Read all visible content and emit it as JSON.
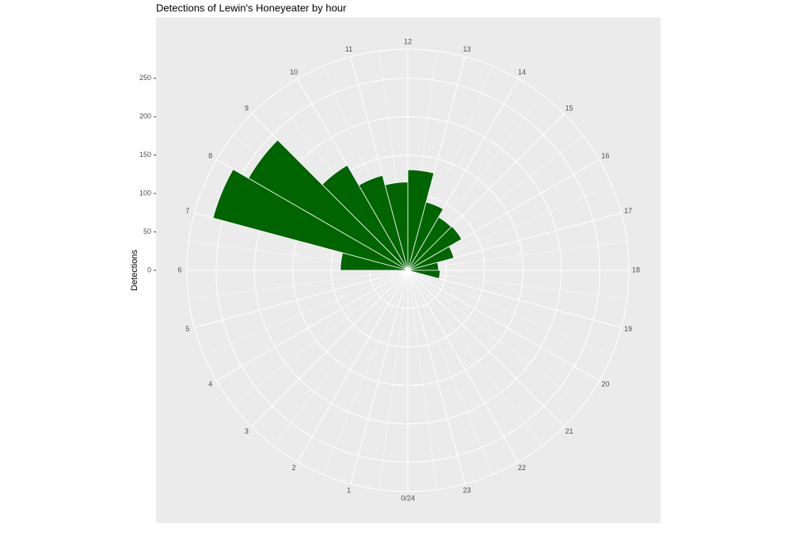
{
  "chart_data": {
    "type": "polar_bar",
    "title": "Detections of Lewin's Honeyeater by hour",
    "y_label": "Detections",
    "categories": [
      "0/24",
      "1",
      "2",
      "3",
      "4",
      "5",
      "6",
      "7",
      "8",
      "9",
      "10",
      "11",
      "12",
      "13",
      "14",
      "15",
      "16",
      "17",
      "18",
      "19",
      "20",
      "21",
      "22",
      "23"
    ],
    "values": [
      0,
      0,
      0,
      0,
      0,
      0,
      88,
      263,
      240,
      158,
      128,
      115,
      131,
      92,
      80,
      81,
      62,
      40,
      42,
      0,
      0,
      0,
      0,
      0
    ],
    "color": "#006400",
    "ylim": [
      0,
      288
    ],
    "yticks": [
      0,
      50,
      100,
      150,
      200,
      250
    ],
    "grid": true
  }
}
